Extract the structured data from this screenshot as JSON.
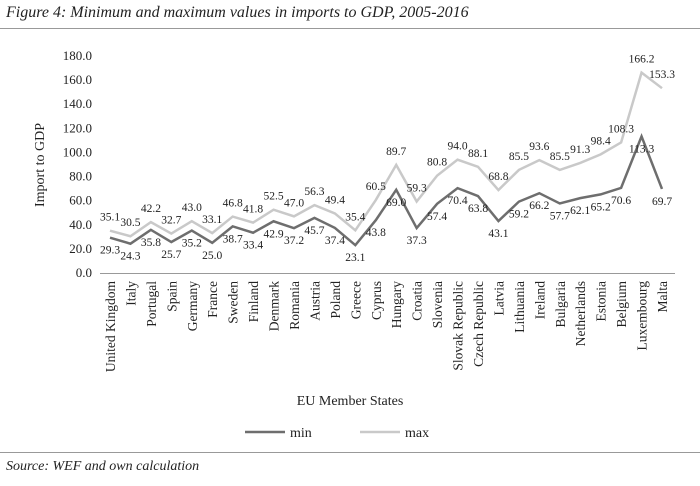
{
  "chart_data": {
    "type": "line",
    "title": "Figure 4: Minimum and maximum values in imports to GDP, 2005-2016",
    "xlabel": "EU Member States",
    "ylabel": "Import to GDP",
    "ylim": [
      0,
      180
    ],
    "yticks": [
      "0.0",
      "20.0",
      "40.0",
      "60.0",
      "80.0",
      "100.0",
      "120.0",
      "140.0",
      "160.0",
      "180.0"
    ],
    "grid": false,
    "legend": "bottom",
    "categories": [
      "United Kingdom",
      "Italy",
      "Portugal",
      "Spain",
      "Germany",
      "France",
      "Sweden",
      "Finland",
      "Denmark",
      "Romania",
      "Austria",
      "Poland",
      "Greece",
      "Cyprus",
      "Hungary",
      "Croatia",
      "Slovenia",
      "Slovak Republic",
      "Czech Republic",
      "Latvia",
      "Lithuania",
      "Ireland",
      "Bulgaria",
      "Netherlands",
      "Estonia",
      "Belgium",
      "Luxembourg",
      "Malta"
    ],
    "series": [
      {
        "name": "min",
        "color": "#6e6e6e",
        "values": [
          29.3,
          24.3,
          35.8,
          25.7,
          35.2,
          25.0,
          38.7,
          33.4,
          42.9,
          37.2,
          45.7,
          37.4,
          23.1,
          43.8,
          69.0,
          37.3,
          57.4,
          70.4,
          63.8,
          43.1,
          59.2,
          66.2,
          57.7,
          62.1,
          65.2,
          70.6,
          113.3,
          69.7
        ]
      },
      {
        "name": "max",
        "color": "#c9c9c9",
        "values": [
          35.1,
          30.5,
          42.2,
          32.7,
          43.0,
          33.1,
          46.8,
          41.8,
          52.5,
          47.0,
          56.3,
          49.4,
          35.4,
          60.5,
          89.7,
          59.3,
          80.8,
          94.0,
          88.1,
          68.8,
          85.5,
          93.6,
          85.5,
          91.3,
          98.4,
          108.3,
          166.2,
          153.3
        ]
      }
    ]
  },
  "source": "Source: WEF and own calculation"
}
